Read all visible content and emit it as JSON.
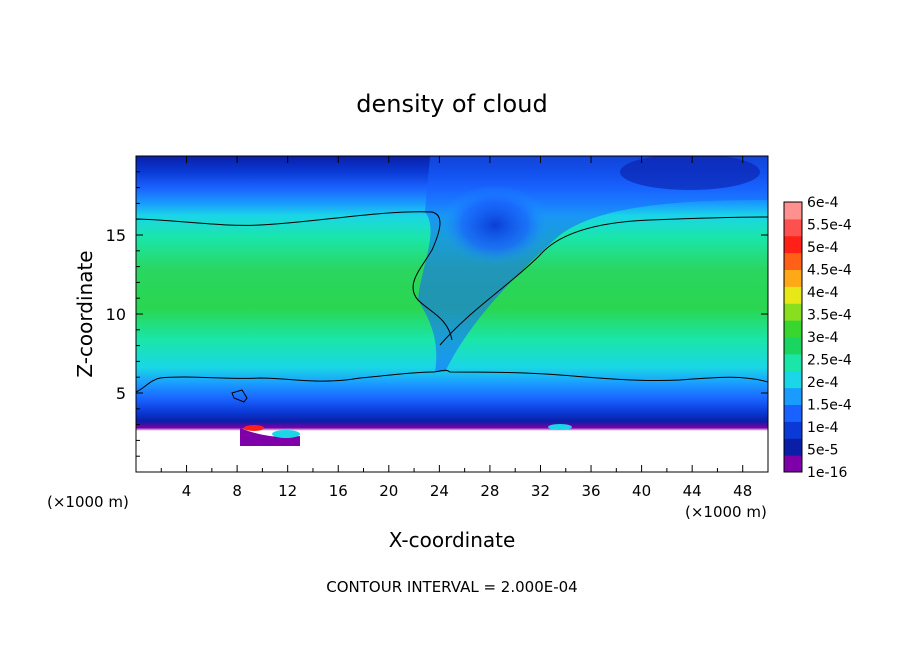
{
  "chart_data": {
    "type": "heatmap",
    "title": "density of cloud",
    "xlabel": "X-coordinate",
    "ylabel": "Z-coordinate",
    "x_unit_left": "(×1000 m)",
    "x_unit_right": "(×1000 m)",
    "xlim": [
      0,
      50
    ],
    "ylim": [
      0,
      20
    ],
    "x_ticks": [
      4,
      8,
      12,
      16,
      20,
      24,
      28,
      32,
      36,
      40,
      44,
      48
    ],
    "y_ticks": [
      5,
      10,
      15
    ],
    "footer": "CONTOUR INTERVAL = 2.000E-04",
    "colorbar": {
      "labels": [
        "1e-16",
        "5e-5",
        "1e-4",
        "1.5e-4",
        "2e-4",
        "2.5e-4",
        "3e-4",
        "3.5e-4",
        "4e-4",
        "4.5e-4",
        "5e-4",
        "5.5e-4",
        "6e-4"
      ],
      "colors": [
        "#7d00a8",
        "#0a1ea8",
        "#0a3ad6",
        "#1a62ff",
        "#1a9cff",
        "#1ad6e6",
        "#1ae6a8",
        "#1ad660",
        "#3ad630",
        "#8ade20",
        "#e8e818",
        "#ffa818",
        "#ff6018",
        "#ff2018",
        "#ff5050",
        "#ff9090"
      ]
    },
    "fields": {
      "top_dark_blue_z": [
        19,
        20
      ],
      "mid_green_core_z": [
        8,
        14
      ],
      "contour_upper_z_left": 16.0,
      "contour_upper_z_right": 16.0,
      "contour_lower_z": 6.1,
      "cloud_base_z": 2.5,
      "gap_tilt_x": [
        22,
        30
      ]
    }
  }
}
